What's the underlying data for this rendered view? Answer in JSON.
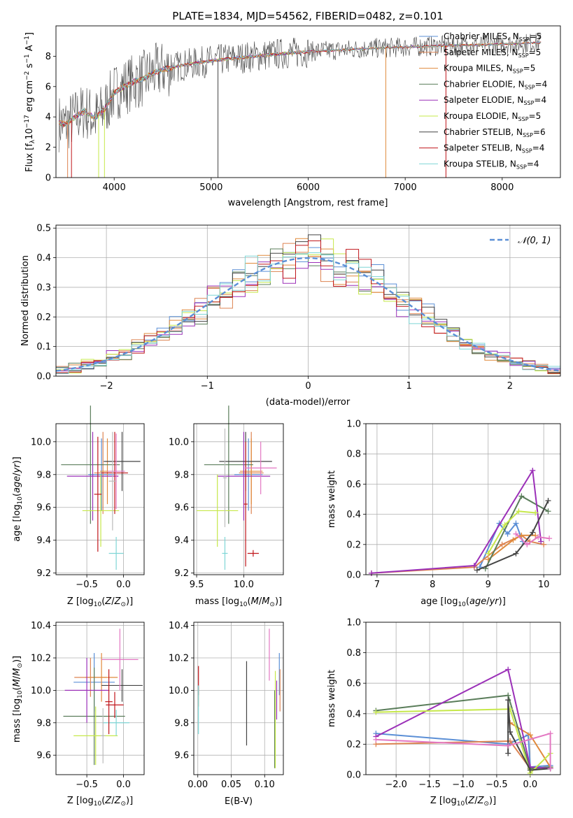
{
  "figure": {
    "title": "PLATE=1834, MJD=54562, FIBERID=0482, z=0.101"
  },
  "legend_series": [
    {
      "name": "Chabrier MILES, N_SSP=5",
      "label_pre": "Chabrier MILES, N",
      "label_sub": "SSP",
      "label_post": "=5",
      "color": "#5b8fd6"
    },
    {
      "name": "Salpeter MILES, N_SSP=5",
      "label_pre": "Salpeter MILES, N",
      "label_sub": "SSP",
      "label_post": "=5",
      "color": "#dd8452"
    },
    {
      "name": "Kroupa MILES, N_SSP=5",
      "label_pre": "Kroupa MILES, N",
      "label_sub": "SSP",
      "label_post": "=5",
      "color": "#e08a3c"
    },
    {
      "name": "Chabrier ELODIE, N_SSP=4",
      "label_pre": "Chabrier ELODIE, N",
      "label_sub": "SSP",
      "label_post": "=4",
      "color": "#5a7d5a"
    },
    {
      "name": "Salpeter ELODIE, N_SSP=4",
      "label_pre": "Salpeter ELODIE, N",
      "label_sub": "SSP",
      "label_post": "=4",
      "color": "#9b30b8"
    },
    {
      "name": "Kroupa ELODIE, N_SSP=5",
      "label_pre": "Kroupa ELODIE, N",
      "label_sub": "SSP",
      "label_post": "=5",
      "color": "#c6e84a"
    },
    {
      "name": "Chabrier STELIB, N_SSP=6",
      "label_pre": "Chabrier STELIB, N",
      "label_sub": "SSP",
      "label_post": "=6",
      "color": "#444444"
    },
    {
      "name": "Salpeter STELIB, N_SSP=4",
      "label_pre": "Salpeter STELIB, N",
      "label_sub": "SSP",
      "label_post": "=4",
      "color": "#c0161b"
    },
    {
      "name": "Kroupa STELIB, N_SSP=4",
      "label_pre": "Kroupa STELIB, N",
      "label_sub": "SSP",
      "label_post": "=4",
      "color": "#7fd6d6"
    }
  ],
  "extra_colors": {
    "pink": "#e377c2",
    "gray": "#808080"
  },
  "chart_data": [
    {
      "id": "spectrum",
      "type": "line",
      "xlabel": "wavelength [Angstrom, rest frame]",
      "ylabel": "Flux [fλ10^-17 erg cm^-2 s^-1 A^-1]",
      "ylabel_parts": [
        "Flux [f",
        "λ",
        "10",
        "−17",
        " erg cm",
        "−2",
        " s",
        "−1",
        " A",
        "−1",
        "]"
      ],
      "xlim": [
        3400,
        8600
      ],
      "ylim": [
        0,
        10
      ],
      "xticks": [
        4000,
        5000,
        6000,
        7000,
        8000
      ],
      "yticks": [
        0,
        2,
        4,
        6,
        8
      ],
      "continuum": {
        "x": [
          3430,
          3500,
          3600,
          3700,
          3800,
          3900,
          4000,
          4100,
          4200,
          4300,
          4400,
          4500,
          4700,
          5000,
          5300,
          5600,
          6000,
          6300,
          6600,
          7000,
          7400,
          7800,
          8000,
          8200,
          8400
        ],
        "y": [
          3.6,
          3.5,
          4.0,
          4.4,
          3.9,
          4.5,
          5.6,
          6.0,
          6.3,
          6.5,
          6.9,
          7.1,
          7.4,
          7.7,
          7.9,
          8.1,
          8.3,
          8.4,
          8.5,
          8.6,
          8.7,
          8.75,
          8.8,
          8.85,
          8.9
        ]
      },
      "noise_amplitude": 1.1,
      "dropouts": [
        3520,
        3560,
        3840,
        3900,
        5070,
        6800,
        7420
      ],
      "grid": false
    },
    {
      "id": "residuals",
      "type": "line",
      "xlabel": "(data-model)/error",
      "ylabel": "Normed distribution",
      "xlim": [
        -2.5,
        2.5
      ],
      "ylim": [
        0,
        0.51
      ],
      "xticks": [
        -2,
        -1,
        0,
        1,
        2
      ],
      "yticks": [
        0.0,
        0.1,
        0.2,
        0.3,
        0.4,
        0.5
      ],
      "legend": "𝒩(0, 1)",
      "bin_width": 0.125,
      "grid": true
    },
    {
      "id": "age_vs_Z",
      "type": "scatter",
      "xlabel": "Z [log10(Z/Z⊙)]",
      "ylabel": "age  [log10(age/yr)]",
      "xlim": [
        -0.92,
        0.28
      ],
      "ylim": [
        9.19,
        10.11
      ],
      "xticks": [
        -0.5,
        0.0
      ],
      "yticks": [
        9.2,
        9.4,
        9.6,
        9.8,
        10.0
      ],
      "points": [
        {
          "series": 0,
          "x": -0.3,
          "y": 9.8,
          "xerr": 0.18,
          "yerr": 0.22
        },
        {
          "series": 1,
          "x": -0.28,
          "y": 9.81,
          "xerr": 0.12,
          "yerr": 0.25
        },
        {
          "series": 2,
          "x": -0.22,
          "y": 9.82,
          "xerr": 0.1,
          "yerr": 0.2
        },
        {
          "series": 3,
          "x": -0.45,
          "y": 9.86,
          "xerr": 0.4,
          "yerr": 0.36
        },
        {
          "series": 4,
          "x": -0.42,
          "y": 9.79,
          "xerr": 0.35,
          "yerr": 0.27
        },
        {
          "series": 5,
          "x": -0.31,
          "y": 9.58,
          "xerr": 0.25,
          "yerr": 0.22
        },
        {
          "series": 6,
          "x": -0.02,
          "y": 9.88,
          "xerr": 0.25,
          "yerr": 0.18
        },
        {
          "series": 7,
          "x": -0.12,
          "y": 9.81,
          "xerr": 0.18,
          "yerr": 0.25
        },
        {
          "series": 8,
          "x": -0.1,
          "y": 9.32,
          "xerr": 0.1,
          "yerr": 0.1
        },
        {
          "series": 9,
          "x": -0.1,
          "y": 9.82,
          "xerr": 0.12,
          "yerr": 0.23
        },
        {
          "series": 10,
          "x": -0.35,
          "y": 9.68,
          "xerr": 0.05,
          "yerr": 0.35
        },
        {
          "series": 11,
          "x": -0.15,
          "y": 9.76,
          "xerr": 0.05,
          "yerr": 0.3
        }
      ],
      "grid": true
    },
    {
      "id": "age_vs_mass",
      "type": "scatter",
      "xlabel": "mass [log10(M/M⊙)]",
      "xlim": [
        9.47,
        10.42
      ],
      "ylim": [
        9.19,
        10.11
      ],
      "xticks": [
        9.5,
        10.0
      ],
      "yticks": [
        9.2,
        9.4,
        9.6,
        9.8,
        10.0
      ],
      "points": [
        {
          "series": 0,
          "x": 10.05,
          "y": 9.8,
          "xerr": 0.15,
          "yerr": 0.22
        },
        {
          "series": 1,
          "x": 10.08,
          "y": 9.81,
          "xerr": 0.13,
          "yerr": 0.25
        },
        {
          "series": 2,
          "x": 10.08,
          "y": 9.82,
          "xerr": 0.12,
          "yerr": 0.2
        },
        {
          "series": 3,
          "x": 9.84,
          "y": 9.86,
          "xerr": 0.26,
          "yerr": 0.36
        },
        {
          "series": 4,
          "x": 10.0,
          "y": 9.79,
          "xerr": 0.28,
          "yerr": 0.27
        },
        {
          "series": 5,
          "x": 9.72,
          "y": 9.58,
          "xerr": 0.22,
          "yerr": 0.22
        },
        {
          "series": 6,
          "x": 10.02,
          "y": 9.88,
          "xerr": 0.28,
          "yerr": 0.18
        },
        {
          "series": 7,
          "x": 10.02,
          "y": 9.62,
          "xerr": 0.02,
          "yerr": 0.38
        },
        {
          "series": 8,
          "x": 9.8,
          "y": 9.32,
          "xerr": 0.03,
          "yerr": 0.1
        },
        {
          "series": 9,
          "x": 10.18,
          "y": 9.84,
          "xerr": 0.17,
          "yerr": 0.16
        },
        {
          "series": 10,
          "x": 10.1,
          "y": 9.32,
          "xerr": 0.06,
          "yerr": 0.02
        },
        {
          "series": 11,
          "x": 9.8,
          "y": 9.78,
          "xerr": 0.02,
          "yerr": 0.3
        }
      ],
      "grid": true
    },
    {
      "id": "mass_weight_vs_age",
      "type": "line",
      "xlabel": "age  [log10(age/yr)]",
      "ylabel": "mass weight",
      "xlim": [
        6.8,
        10.3
      ],
      "ylim": [
        0,
        1.0
      ],
      "xticks": [
        7,
        8,
        9,
        10
      ],
      "yticks": [
        0.0,
        0.2,
        0.4,
        0.6,
        0.8,
        1.0
      ],
      "series": [
        {
          "series": 0,
          "x": [
            8.85,
            9.2,
            9.35,
            9.5,
            9.62
          ],
          "y": [
            0.05,
            0.34,
            0.27,
            0.34,
            0.22
          ]
        },
        {
          "series": 1,
          "x": [
            6.9,
            8.75,
            9.25,
            9.6,
            9.75,
            10.0
          ],
          "y": [
            0.01,
            0.05,
            0.2,
            0.26,
            0.22,
            0.2
          ]
        },
        {
          "series": 2,
          "x": [
            9.0,
            9.45,
            9.6,
            9.85
          ],
          "y": [
            0.1,
            0.23,
            0.26,
            0.26
          ]
        },
        {
          "series": 3,
          "x": [
            8.95,
            9.6,
            10.08
          ],
          "y": [
            0.04,
            0.52,
            0.42
          ]
        },
        {
          "series": 4,
          "x": [
            6.9,
            8.75,
            9.8,
            9.95
          ],
          "y": [
            0.01,
            0.06,
            0.69,
            0.22
          ]
        },
        {
          "series": 5,
          "x": [
            9.0,
            9.3,
            9.55,
            9.85
          ],
          "y": [
            0.14,
            0.33,
            0.42,
            0.41
          ]
        },
        {
          "series": 6,
          "x": [
            8.8,
            9.5,
            9.8,
            10.08
          ],
          "y": [
            0.03,
            0.14,
            0.28,
            0.49
          ]
        },
        {
          "series": 9,
          "x": [
            9.5,
            9.7,
            9.9,
            10.1
          ],
          "y": [
            0.27,
            0.2,
            0.25,
            0.24
          ]
        }
      ],
      "grid": true
    },
    {
      "id": "mass_vs_Z",
      "type": "scatter",
      "xlabel": "Z [log10(Z/Z⊙)]",
      "ylabel": "mass [log10(M/M⊙)]",
      "xlim": [
        -0.92,
        0.28
      ],
      "ylim": [
        9.48,
        10.42
      ],
      "xticks": [
        -0.5,
        0.0
      ],
      "yticks": [
        9.6,
        9.8,
        10.0,
        10.2,
        10.4
      ],
      "points": [
        {
          "series": 0,
          "x": -0.4,
          "y": 10.05,
          "xerr": 0.28,
          "yerr": 0.18
        },
        {
          "series": 1,
          "x": -0.45,
          "y": 10.08,
          "xerr": 0.22,
          "yerr": 0.12
        },
        {
          "series": 2,
          "x": -0.3,
          "y": 10.08,
          "xerr": 0.22,
          "yerr": 0.15
        },
        {
          "series": 3,
          "x": -0.4,
          "y": 9.84,
          "xerr": 0.42,
          "yerr": 0.3
        },
        {
          "series": 4,
          "x": -0.5,
          "y": 10.0,
          "xerr": 0.3,
          "yerr": 0.2
        },
        {
          "series": 5,
          "x": -0.38,
          "y": 9.72,
          "xerr": 0.3,
          "yerr": 0.18
        },
        {
          "series": 6,
          "x": -0.02,
          "y": 10.03,
          "xerr": 0.28,
          "yerr": 0.1
        },
        {
          "series": 7,
          "x": -0.12,
          "y": 9.91,
          "xerr": 0.12,
          "yerr": 0.08
        },
        {
          "series": 8,
          "x": -0.1,
          "y": 9.8,
          "xerr": 0.18,
          "yerr": 0.08
        },
        {
          "series": 9,
          "x": -0.05,
          "y": 10.19,
          "xerr": 0.25,
          "yerr": 0.19
        },
        {
          "series": 10,
          "x": -0.2,
          "y": 9.93,
          "xerr": 0.05,
          "yerr": 0.2
        },
        {
          "series": 11,
          "x": -0.28,
          "y": 9.72,
          "xerr": 0.03,
          "yerr": 0.17
        }
      ],
      "grid": true
    },
    {
      "id": "mass_vs_EBV",
      "type": "scatter",
      "xlabel": "E(B-V)",
      "xlim": [
        -0.006,
        0.128
      ],
      "ylim": [
        9.48,
        10.42
      ],
      "xticks": [
        0.0,
        0.05,
        0.1
      ],
      "yticks": [
        9.6,
        9.8,
        10.0,
        10.2,
        10.4
      ],
      "points": [
        {
          "series": 0,
          "x": 0.122,
          "y": 10.1,
          "xerr": 0,
          "yerr": 0.13
        },
        {
          "series": 1,
          "x": 0.123,
          "y": 10.0,
          "xerr": 0,
          "yerr": 0.13
        },
        {
          "series": 2,
          "x": 0.001,
          "y": 9.96,
          "xerr": 0,
          "yerr": 0.06
        },
        {
          "series": 3,
          "x": 0.115,
          "y": 9.76,
          "xerr": 0,
          "yerr": 0.24
        },
        {
          "series": 5,
          "x": 0.116,
          "y": 9.82,
          "xerr": 0,
          "yerr": 0.3
        },
        {
          "series": 6,
          "x": 0.073,
          "y": 9.92,
          "xerr": 0,
          "yerr": 0.26
        },
        {
          "series": 7,
          "x": 0.001,
          "y": 10.06,
          "xerr": 0,
          "yerr": 0.09
        },
        {
          "series": 8,
          "x": 0.001,
          "y": 9.88,
          "xerr": 0,
          "yerr": 0.15
        },
        {
          "series": 9,
          "x": 0.107,
          "y": 10.22,
          "xerr": 0,
          "yerr": 0.16
        },
        {
          "series": 4,
          "x": 0.118,
          "y": 9.94,
          "xerr": 0,
          "yerr": 0.12
        }
      ],
      "grid": true
    },
    {
      "id": "mass_weight_vs_Z",
      "type": "line",
      "xlabel": "Z [log10(Z/Z⊙)]",
      "ylabel": "mass weight",
      "xlim": [
        -2.45,
        0.45
      ],
      "ylim": [
        0,
        1.0
      ],
      "xticks": [
        -2.0,
        -1.5,
        -1.0,
        -0.5,
        0.0
      ],
      "yticks": [
        0.0,
        0.2,
        0.4,
        0.6,
        0.8,
        1.0
      ],
      "series": [
        {
          "series": 0,
          "x": [
            -2.3,
            -0.33,
            -0.03,
            0.0,
            0.3
          ],
          "y": [
            0.27,
            0.2,
            0.26,
            0.05,
            0.06
          ]
        },
        {
          "series": 1,
          "x": [
            -2.3,
            -0.3,
            0.0,
            0.3
          ],
          "y": [
            0.2,
            0.22,
            0.04,
            0.05
          ]
        },
        {
          "series": 2,
          "x": [
            -0.3,
            0.0,
            0.3
          ],
          "y": [
            0.34,
            0.26,
            0.05
          ]
        },
        {
          "series": 3,
          "x": [
            -2.3,
            -0.33,
            0.0,
            0.3
          ],
          "y": [
            0.42,
            0.52,
            0.04,
            0.05
          ]
        },
        {
          "series": 4,
          "x": [
            -2.3,
            -0.33,
            0.0,
            0.3
          ],
          "y": [
            0.25,
            0.69,
            0.05,
            0.04
          ]
        },
        {
          "series": 5,
          "x": [
            -2.3,
            -0.3,
            0.0,
            0.3
          ],
          "y": [
            0.41,
            0.43,
            0.01,
            0.14
          ]
        },
        {
          "series": 6,
          "x": [
            -0.33,
            -0.33,
            -0.3,
            0.0,
            0.3
          ],
          "y": [
            0.14,
            0.49,
            0.28,
            0.03,
            0.04
          ]
        },
        {
          "series": 9,
          "x": [
            -2.3,
            -0.33,
            0.3,
            0.3
          ],
          "y": [
            0.23,
            0.19,
            0.27,
            0.04
          ]
        }
      ],
      "grid": true
    }
  ]
}
